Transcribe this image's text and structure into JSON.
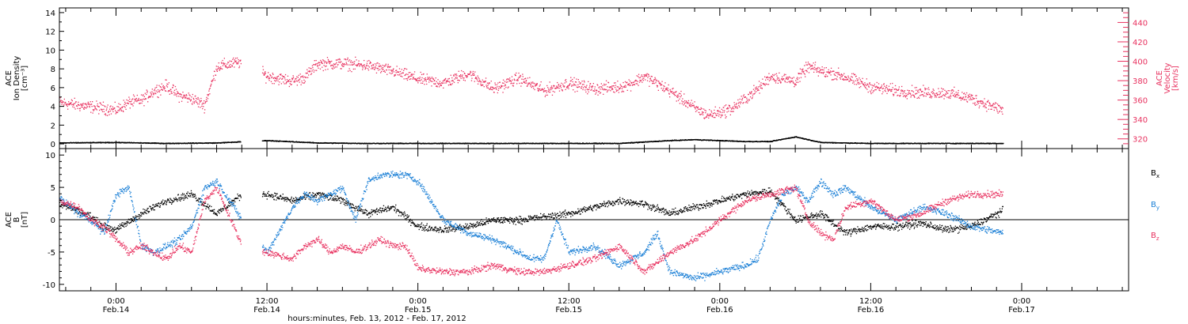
{
  "title": "",
  "x_axis": {
    "title": "hours:minutes, Feb. 13, 2012 - Feb. 17, 2012",
    "range_hours": [
      -4.5,
      80.5
    ],
    "ticks": [
      {
        "hour": 0,
        "time": "0:00",
        "date": "Feb.14"
      },
      {
        "hour": 12,
        "time": "12:00",
        "date": "Feb.14"
      },
      {
        "hour": 24,
        "time": "0:00",
        "date": "Feb.15"
      },
      {
        "hour": 36,
        "time": "12:00",
        "date": "Feb.15"
      },
      {
        "hour": 48,
        "time": "0:00",
        "date": "Feb.16"
      },
      {
        "hour": 60,
        "time": "12:00",
        "date": "Feb.16"
      },
      {
        "hour": 72,
        "time": "0:00",
        "date": "Feb.17"
      }
    ],
    "minor_step_hours": 2
  },
  "colors": {
    "density": "#000000",
    "velocity": "#e8315f",
    "bx": "#000000",
    "by": "#1a7fd6",
    "bz": "#e8315f"
  },
  "chart_data": [
    {
      "type": "scatter",
      "panel": "plasma",
      "ylabel_left": [
        "ACE",
        "Ion Density",
        "[cm⁻³]"
      ],
      "ylabel_right": [
        "ACE",
        "Velocity",
        "[km/s]"
      ],
      "ylim_left": [
        -0.5,
        14.5
      ],
      "yticks_left": [
        0,
        2,
        4,
        6,
        8,
        10,
        12,
        14
      ],
      "ylim_right": [
        310,
        455
      ],
      "yticks_right": [
        320,
        340,
        360,
        380,
        400,
        420,
        440
      ],
      "data_gap_hours": [
        9.9,
        11.6
      ],
      "data_end_hours": 70.5,
      "series": [
        {
          "name": "Ion Density",
          "axis": "left",
          "x": [
            -4.5,
            0,
            4,
            8,
            12,
            16,
            20,
            24,
            28,
            32,
            36,
            40,
            44,
            46,
            48,
            50,
            52,
            54,
            56,
            60,
            64,
            68,
            70.5
          ],
          "y": [
            0.15,
            0.2,
            0.1,
            0.15,
            0.4,
            0.15,
            0.1,
            0.1,
            0.1,
            0.1,
            0.1,
            0.1,
            0.4,
            0.5,
            0.4,
            0.3,
            0.3,
            0.8,
            0.2,
            0.1,
            0.1,
            0.1,
            0.1
          ]
        },
        {
          "name": "Velocity",
          "axis": "right",
          "x": [
            -4.5,
            -3,
            -1,
            0,
            1,
            2,
            3,
            4,
            5,
            6,
            7,
            8,
            10,
            12,
            14,
            15,
            16,
            18,
            20,
            22,
            24,
            26,
            28,
            30,
            32,
            34,
            36,
            38,
            40,
            41,
            42,
            44,
            46,
            47,
            48,
            49,
            50,
            51,
            52,
            54,
            55,
            56,
            57,
            58,
            60,
            62,
            64,
            66,
            68,
            70.5
          ],
          "y": [
            358,
            355,
            352,
            350,
            358,
            360,
            370,
            375,
            365,
            362,
            355,
            395,
            400,
            385,
            380,
            384,
            398,
            398,
            396,
            390,
            382,
            378,
            388,
            372,
            383,
            370,
            378,
            372,
            374,
            378,
            385,
            370,
            352,
            345,
            348,
            352,
            362,
            372,
            385,
            380,
            395,
            390,
            388,
            384,
            374,
            370,
            368,
            368,
            362,
            350
          ]
        }
      ]
    },
    {
      "type": "scatter",
      "panel": "magnetic",
      "ylabel_left": [
        "ACE",
        "B",
        "[nT]"
      ],
      "ylim": [
        -11,
        11
      ],
      "yticks": [
        -10,
        -5,
        0,
        5,
        10
      ],
      "zero_line": true,
      "data_gap_hours": [
        9.9,
        11.6
      ],
      "data_end_hours": 70.5,
      "series": [
        {
          "name": "Bx",
          "label": "B",
          "subscript": "x",
          "x": [
            -4.5,
            -3,
            -2,
            -1,
            0,
            2,
            4,
            6,
            8,
            10,
            12,
            14,
            16,
            18,
            20,
            22,
            24,
            26,
            28,
            30,
            32,
            34,
            36,
            38,
            40,
            42,
            44,
            46,
            48,
            50,
            52,
            54,
            56,
            58,
            60,
            62,
            64,
            66,
            68,
            70.5
          ],
          "y": [
            2.5,
            1.5,
            0.5,
            -1,
            -1.5,
            1,
            3,
            4,
            1,
            4,
            4,
            3,
            4,
            3,
            1,
            2,
            -1,
            -1.5,
            -1,
            0,
            0,
            0.5,
            1,
            2,
            3,
            2.5,
            1,
            2,
            3,
            4,
            4.5,
            0,
            1,
            -2,
            -1,
            -1,
            -0.5,
            -1.5,
            -1,
            1.5
          ]
        },
        {
          "name": "By",
          "label": "B",
          "subscript": "y",
          "x": [
            -4.5,
            -3,
            -2,
            -1,
            0,
            1,
            2,
            3,
            4,
            5,
            6,
            7,
            8,
            10,
            12,
            14,
            15,
            16,
            18,
            19,
            20,
            21,
            22,
            23,
            24,
            26,
            28,
            30,
            32,
            33,
            34,
            35,
            36,
            38,
            40,
            42,
            43,
            44,
            46,
            48,
            50,
            51,
            52,
            53,
            54,
            55,
            56,
            57,
            58,
            60,
            62,
            64,
            66,
            68,
            70.5
          ],
          "y": [
            3.5,
            1,
            0,
            -2,
            4,
            5,
            -4,
            -5,
            -4,
            -3,
            -1,
            5,
            6,
            0,
            -5,
            2,
            4,
            3,
            5,
            0,
            6,
            7,
            7,
            7,
            6,
            0,
            -2,
            -3,
            -5,
            -6,
            -6,
            0,
            -5,
            -4,
            -7,
            -5,
            -2,
            -8,
            -9,
            -8,
            -7,
            -6,
            0,
            4,
            5,
            3,
            6,
            4,
            5,
            2,
            0,
            2,
            1,
            -1,
            -2
          ]
        },
        {
          "name": "Bz",
          "label": "B",
          "subscript": "z",
          "x": [
            -4.5,
            -3,
            -2,
            -1,
            0,
            1,
            2,
            3,
            4,
            5,
            6,
            7,
            8,
            10,
            12,
            14,
            15,
            16,
            17,
            18,
            19,
            20,
            21,
            22,
            23,
            24,
            26,
            28,
            30,
            32,
            34,
            36,
            38,
            40,
            42,
            44,
            46,
            48,
            50,
            52,
            54,
            55,
            56,
            57,
            58,
            60,
            62,
            64,
            66,
            68,
            70.5
          ],
          "y": [
            3,
            2,
            0,
            -1,
            -3,
            -5,
            -4,
            -5,
            -6,
            -4,
            -5,
            3,
            5,
            -4,
            -5,
            -6,
            -4,
            -3,
            -5,
            -4,
            -5,
            -4,
            -3,
            -4,
            -4,
            -7.5,
            -8,
            -8,
            -7,
            -8,
            -8,
            -7,
            -6,
            -4,
            -8,
            -5,
            -3,
            0,
            3,
            4,
            5,
            0,
            -2,
            -3,
            2,
            3,
            0,
            1,
            3,
            4,
            4
          ]
        }
      ]
    }
  ]
}
